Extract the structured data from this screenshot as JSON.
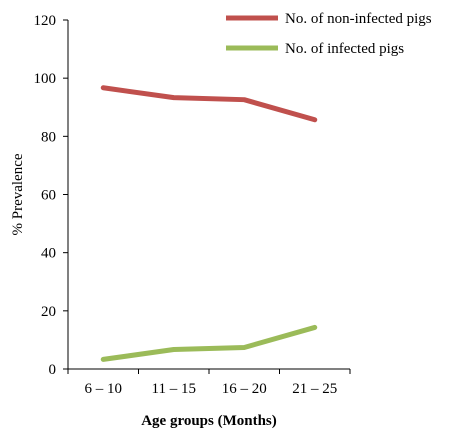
{
  "chart_data": {
    "type": "line",
    "categories": [
      "6 – 10",
      "11 – 15",
      "16 – 20",
      "21 – 25"
    ],
    "series": [
      {
        "name": "No. of non-infected pigs",
        "values": [
          96.7,
          93.3,
          92.6,
          85.7
        ],
        "color": "#c0504d"
      },
      {
        "name": "No. of infected pigs",
        "values": [
          3.3,
          6.7,
          7.4,
          14.3
        ],
        "color": "#9bbb59"
      }
    ],
    "xlabel": "Age groups (Months)",
    "ylabel": "% Prevalence",
    "ylim": [
      0,
      120
    ],
    "yticks": [
      "0",
      "20",
      "40",
      "60",
      "80",
      "100",
      "120"
    ],
    "grid": false,
    "legend_position": "top-right"
  }
}
